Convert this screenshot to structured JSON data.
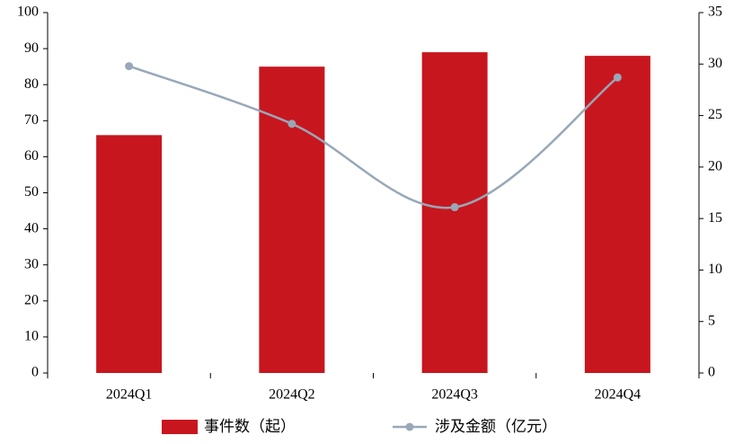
{
  "chart_data": {
    "type": "bar",
    "categories": [
      "2024Q1",
      "2024Q2",
      "2024Q3",
      "2024Q4"
    ],
    "series": [
      {
        "name": "事件数（起）",
        "type": "bar",
        "color": "#c8161e",
        "values": [
          66,
          85,
          89,
          88
        ]
      },
      {
        "name": "涉及金额（亿元）",
        "type": "line",
        "axis": "y2",
        "color": "#98a8b8",
        "values": [
          29.8,
          24.2,
          16.1,
          28.7
        ]
      }
    ],
    "ylim": [
      0,
      100
    ],
    "yticks": [
      0,
      10,
      20,
      30,
      40,
      50,
      60,
      70,
      80,
      90,
      100
    ],
    "y2lim": [
      0,
      35
    ],
    "y2ticks": [
      0,
      5,
      10,
      15,
      20,
      25,
      30,
      35
    ],
    "grid": false,
    "legend": "bottom"
  }
}
